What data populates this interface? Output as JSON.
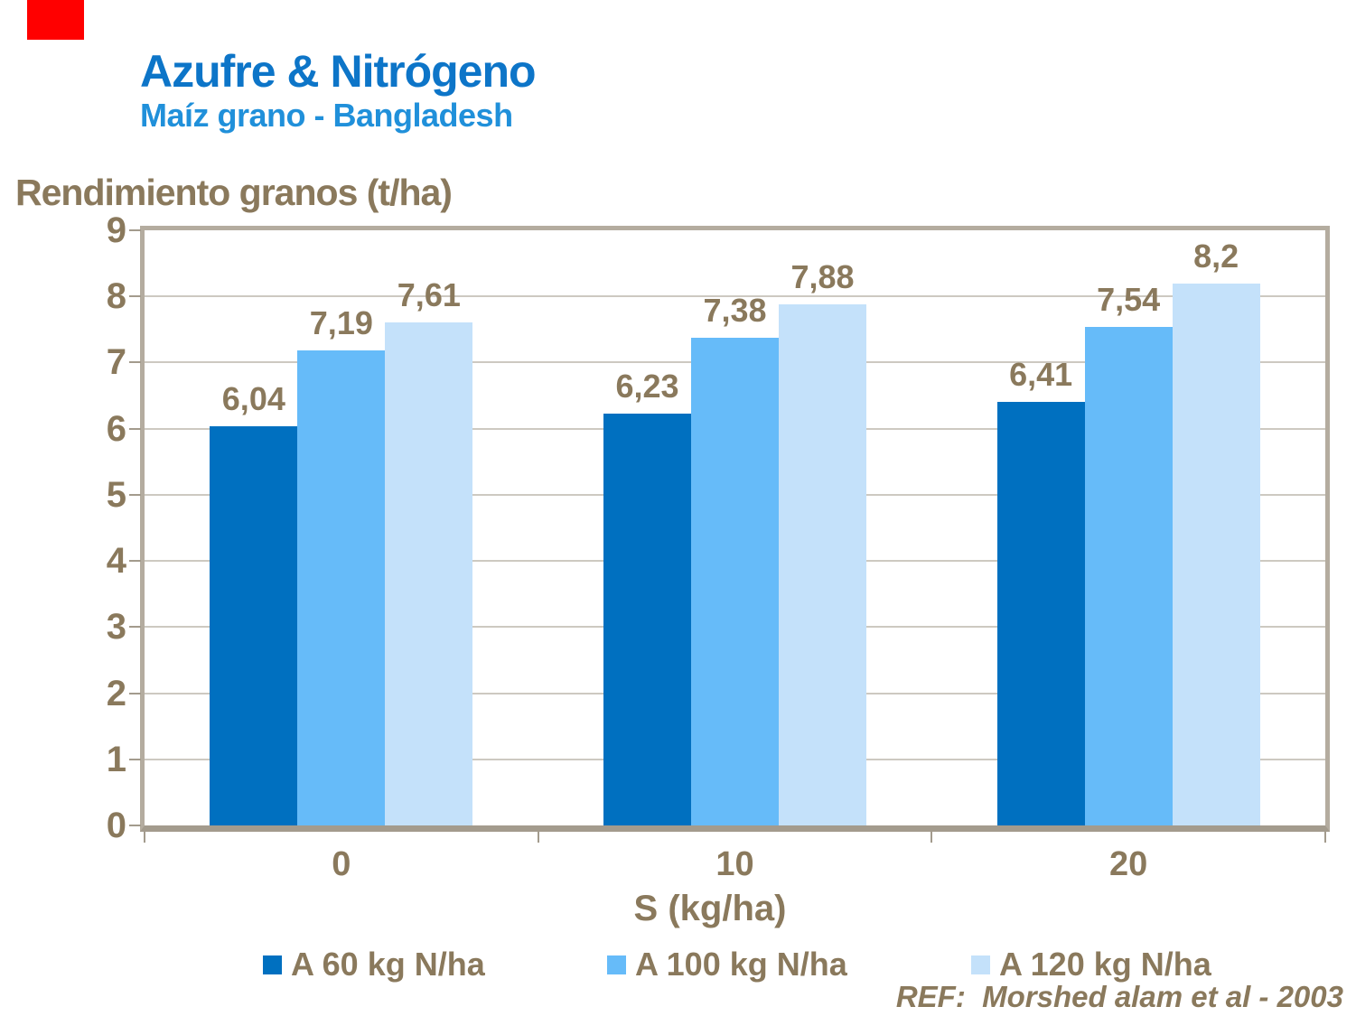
{
  "chart_data": {
    "type": "bar",
    "title": "Azufre & Nitrógeno",
    "subtitle": "Maíz grano - Bangladesh",
    "ylabel": "Rendimiento granos (t/ha)",
    "xlabel": "S (kg/ha)",
    "categories": [
      "0",
      "10",
      "20"
    ],
    "series": [
      {
        "name": "A 60 kg N/ha",
        "color": "#0070C0",
        "values": [
          6.04,
          6.23,
          6.41
        ],
        "value_labels": [
          "6,04",
          "6,23",
          "6,41"
        ]
      },
      {
        "name": "A 100 kg N/ha",
        "color": "#66BBF9",
        "values": [
          7.19,
          7.38,
          7.54
        ],
        "value_labels": [
          "7,19",
          "7,38",
          "7,54"
        ]
      },
      {
        "name": "A 120 kg N/ha",
        "color": "#C4E1FA",
        "values": [
          7.61,
          7.88,
          8.2
        ],
        "value_labels": [
          "7,61",
          "7,88",
          "8,2"
        ]
      }
    ],
    "ylim": [
      0,
      9
    ],
    "yticks": [
      "0",
      "1",
      "2",
      "3",
      "4",
      "5",
      "6",
      "7",
      "8",
      "9"
    ],
    "grid": true,
    "legend_position": "bottom"
  },
  "footer": {
    "ref": "REF:  Morshed alam et al - 2003"
  },
  "style": {
    "background": "#FFFFFF",
    "corner_block_color": "#FF0000",
    "title_color": "#0D75C8",
    "subtitle_color": "#2090DA",
    "text_color": "#8A795C",
    "grid_color": "#CDC9C1",
    "axis_color": "#B4AC9F",
    "tick_color": "#A39B8D"
  }
}
